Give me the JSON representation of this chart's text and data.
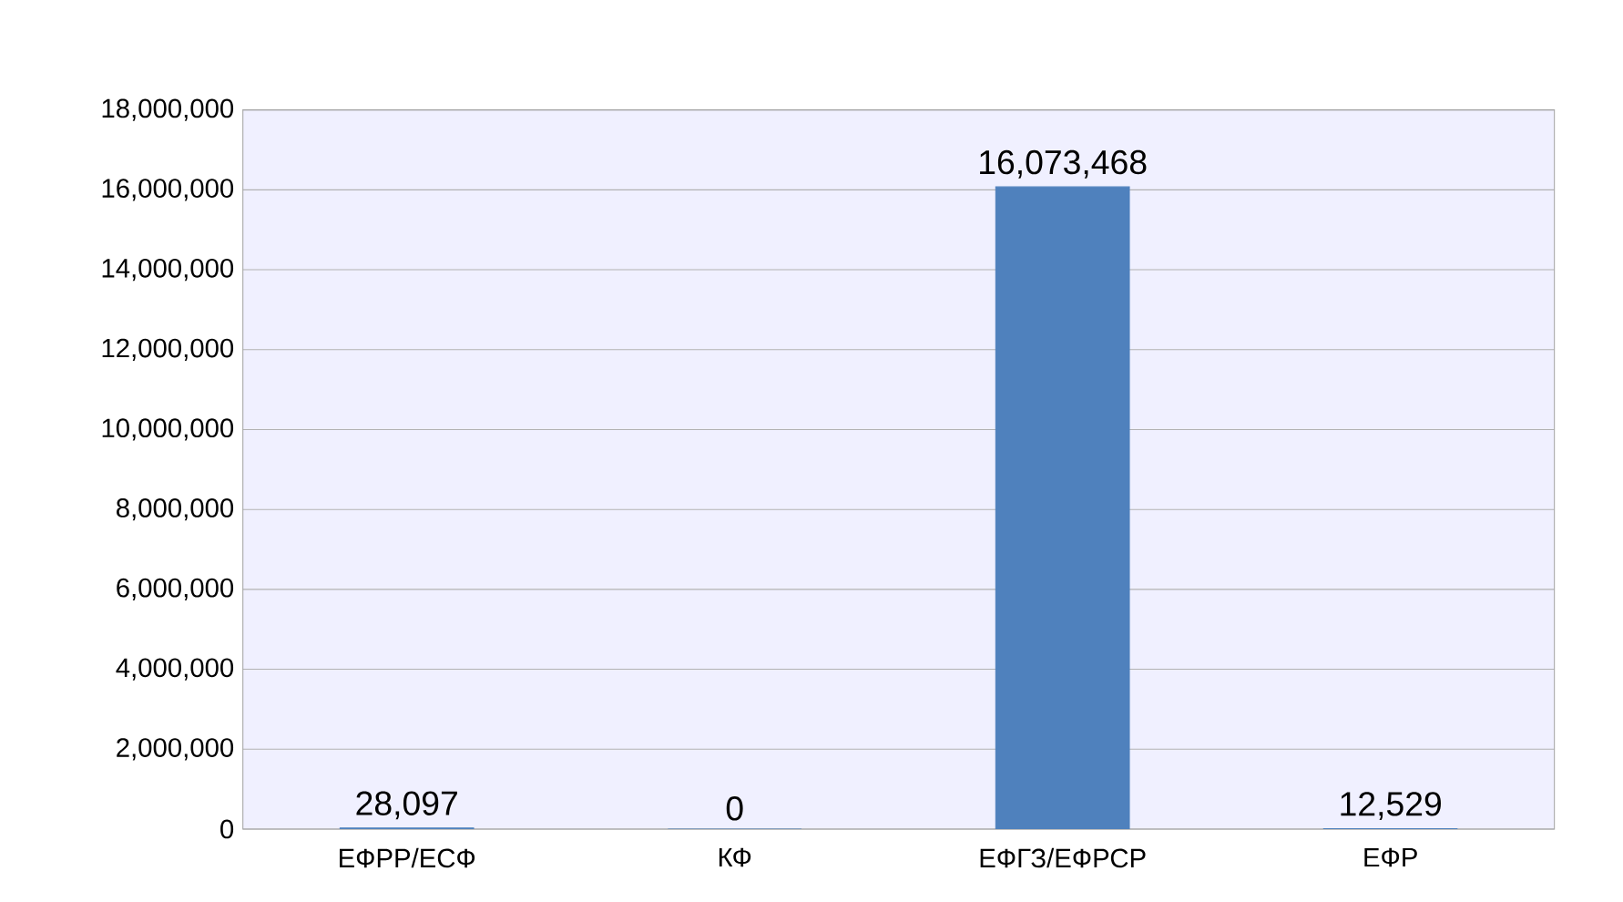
{
  "chart_data": {
    "type": "bar",
    "categories": [
      "ЕФРР/ЕСФ",
      "КФ",
      "ЕФГЗ/ЕФРСР",
      "ЕФР"
    ],
    "values": [
      28097,
      0,
      16073468,
      12529
    ],
    "value_labels": [
      "28,097",
      "0",
      "16,073,468",
      "12,529"
    ],
    "color": "#4f81bd",
    "ylim": [
      0,
      18000000
    ],
    "yticks": [
      {
        "value": 0,
        "label": "0"
      },
      {
        "value": 2000000,
        "label": "2,000,000"
      },
      {
        "value": 4000000,
        "label": "4,000,000"
      },
      {
        "value": 6000000,
        "label": "6,000,000"
      },
      {
        "value": 8000000,
        "label": "8,000,000"
      },
      {
        "value": 10000000,
        "label": "10,000,000"
      },
      {
        "value": 12000000,
        "label": "12,000,000"
      },
      {
        "value": 14000000,
        "label": "14,000,000"
      },
      {
        "value": 16000000,
        "label": "16,000,000"
      },
      {
        "value": 18000000,
        "label": "18,000,000"
      }
    ],
    "grid": "y"
  }
}
